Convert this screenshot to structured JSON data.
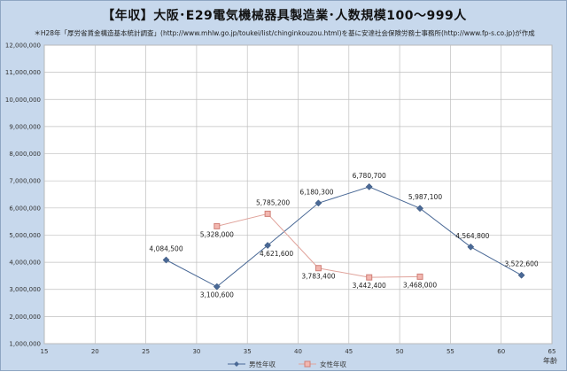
{
  "header": {
    "title": "【年収】大阪･E29電気機械器具製造業･人数規模100～999人",
    "source": "＊H28年「厚労省賃金構造基本統計調査」(http://www.mhlw.go.jp/toukei/list/chinginkouzou.html)を基に安達社会保険労務士事務所(http://www.fp-s.co.jp)が作成"
  },
  "colors": {
    "background": "#c7d8ec",
    "plot_background": "#ffffff",
    "male": "#4a6996",
    "female_line": "#e0a39b",
    "female_marker": "#d07f77"
  },
  "chart_data": {
    "type": "line",
    "title": "【年収】大阪･E29電気機械器具製造業･人数規模100～999人",
    "xlabel": "年齢",
    "ylabel": "",
    "xlim": [
      15,
      65
    ],
    "ylim": [
      1000000,
      12000000
    ],
    "xticks": [
      15,
      20,
      25,
      30,
      35,
      40,
      45,
      50,
      55,
      60,
      65
    ],
    "yticks": [
      1000000,
      2000000,
      3000000,
      4000000,
      5000000,
      6000000,
      7000000,
      8000000,
      9000000,
      10000000,
      11000000,
      12000000
    ],
    "ytick_labels": [
      "1,000,000",
      "2,000,000",
      "3,000,000",
      "4,000,000",
      "5,000,000",
      "6,000,000",
      "7,000,000",
      "8,000,000",
      "9,000,000",
      "10,000,000",
      "11,000,000",
      "12,000,000"
    ],
    "grid": true,
    "legend_position": "bottom",
    "series": [
      {
        "name": "男性年収",
        "marker": "diamond",
        "x": [
          27,
          32,
          37,
          42,
          47,
          52,
          57,
          62
        ],
        "y": [
          4084500,
          3100600,
          4621600,
          6180300,
          6780700,
          5987100,
          4564800,
          3522600
        ],
        "labels": [
          "4,084,500",
          "3,100,600",
          "4,621,600",
          "6,180,300",
          "6,780,700",
          "5,987,100",
          "4,564,800",
          "3,522,600"
        ]
      },
      {
        "name": "女性年収",
        "marker": "square",
        "x": [
          32,
          37,
          42,
          47,
          52
        ],
        "y": [
          5328000,
          5785200,
          3783400,
          3442400,
          3468000
        ],
        "labels": [
          "5,328,000",
          "5,785,200",
          "3,783,400",
          "3,442,400",
          "3,468,000"
        ]
      }
    ]
  }
}
